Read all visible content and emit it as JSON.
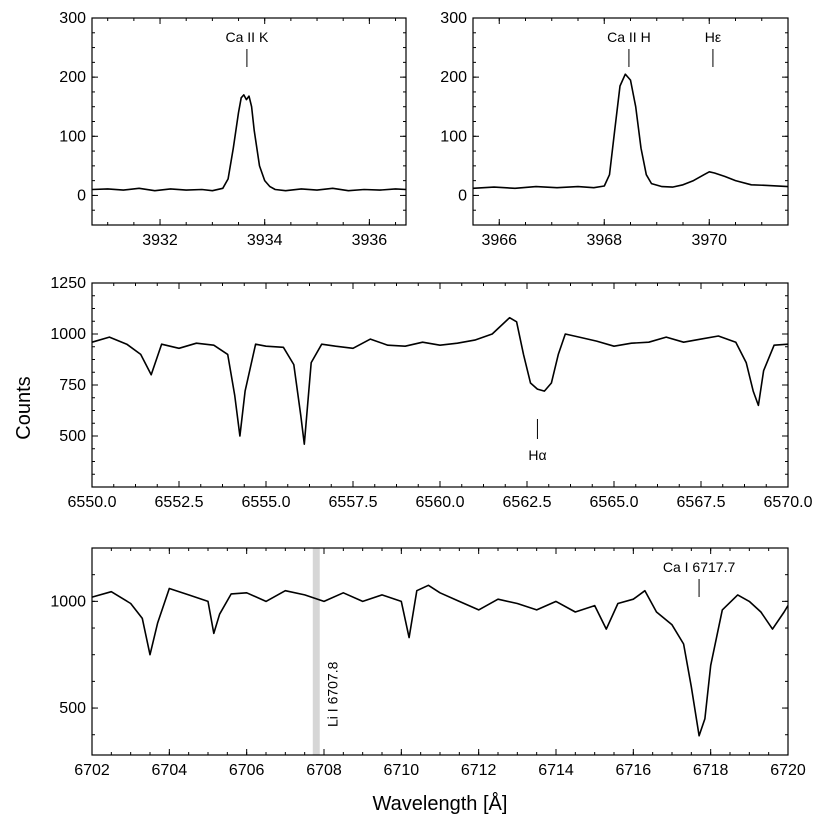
{
  "figure": {
    "ylabel": "Counts",
    "xlabel": "Wavelength [Å]"
  },
  "chart_data": [
    {
      "type": "line",
      "panel": "ca-ii-k",
      "xlim": [
        3930.7,
        3936.7
      ],
      "ylim": [
        -50,
        300
      ],
      "xticks": [
        3932,
        3934,
        3936
      ],
      "xtick_labels": [
        "3932",
        "3934",
        "3936"
      ],
      "yticks": [
        0,
        100,
        200,
        300
      ],
      "ytick_labels": [
        "0",
        "100",
        "200",
        "300"
      ],
      "annotations": [
        {
          "label": "Ca II K",
          "x": 3933.66
        }
      ],
      "series": [
        {
          "line_color": "#000000",
          "x": [
            3930.7,
            3931.0,
            3931.3,
            3931.6,
            3931.9,
            3932.2,
            3932.5,
            3932.8,
            3933.0,
            3933.2,
            3933.3,
            3933.4,
            3933.5,
            3933.55,
            3933.6,
            3933.65,
            3933.7,
            3933.75,
            3933.8,
            3933.9,
            3934.0,
            3934.1,
            3934.2,
            3934.4,
            3934.7,
            3935.0,
            3935.3,
            3935.6,
            3935.9,
            3936.2,
            3936.5,
            3936.7
          ],
          "y": [
            10,
            11,
            9,
            12,
            8,
            11,
            9,
            10,
            8,
            12,
            28,
            80,
            140,
            165,
            170,
            162,
            168,
            150,
            110,
            50,
            25,
            15,
            10,
            8,
            11,
            9,
            12,
            8,
            10,
            9,
            11,
            10
          ]
        }
      ]
    },
    {
      "type": "line",
      "panel": "ca-ii-h",
      "xlim": [
        3965.5,
        3971.5
      ],
      "ylim": [
        -50,
        300
      ],
      "xticks": [
        3966,
        3968,
        3970
      ],
      "xtick_labels": [
        "3966",
        "3968",
        "3970"
      ],
      "yticks": [
        0,
        100,
        200,
        300
      ],
      "ytick_labels": [
        "0",
        "100",
        "200",
        "300"
      ],
      "annotations": [
        {
          "label": "Ca II H",
          "x": 3968.47
        },
        {
          "label": "Hε",
          "x": 3970.07
        }
      ],
      "series": [
        {
          "line_color": "#000000",
          "x": [
            3965.5,
            3965.9,
            3966.3,
            3966.7,
            3967.1,
            3967.5,
            3967.8,
            3968.0,
            3968.1,
            3968.2,
            3968.3,
            3968.4,
            3968.45,
            3968.5,
            3968.6,
            3968.7,
            3968.8,
            3968.9,
            3969.1,
            3969.3,
            3969.5,
            3969.7,
            3969.9,
            3970.0,
            3970.1,
            3970.3,
            3970.5,
            3970.8,
            3971.1,
            3971.5
          ],
          "y": [
            12,
            14,
            12,
            15,
            13,
            15,
            13,
            16,
            35,
            110,
            185,
            205,
            200,
            195,
            150,
            80,
            35,
            20,
            15,
            14,
            18,
            25,
            35,
            40,
            38,
            32,
            25,
            18,
            17,
            15
          ]
        }
      ]
    },
    {
      "type": "line",
      "panel": "h-alpha",
      "xlim": [
        6550.0,
        6570.0
      ],
      "ylim": [
        250,
        1250
      ],
      "xticks": [
        6550.0,
        6552.5,
        6555.0,
        6557.5,
        6560.0,
        6562.5,
        6565.0,
        6567.5,
        6570.0
      ],
      "xtick_labels": [
        "6550.0",
        "6552.5",
        "6555.0",
        "6557.5",
        "6560.0",
        "6562.5",
        "6565.0",
        "6567.5",
        "6570.0"
      ],
      "yticks": [
        500,
        750,
        1000,
        1250
      ],
      "ytick_labels": [
        "500",
        "750",
        "1000",
        "1250"
      ],
      "annotations": [
        {
          "label": "Hα",
          "x": 6562.8
        }
      ],
      "series": [
        {
          "line_color": "#000000",
          "x": [
            6550.0,
            6550.5,
            6551.0,
            6551.4,
            6551.7,
            6552.0,
            6552.5,
            6553.0,
            6553.5,
            6553.9,
            6554.1,
            6554.25,
            6554.4,
            6554.7,
            6555.0,
            6555.5,
            6555.8,
            6556.0,
            6556.1,
            6556.3,
            6556.6,
            6557.0,
            6557.5,
            6558.0,
            6558.5,
            6559.0,
            6559.5,
            6560.0,
            6560.5,
            6561.0,
            6561.5,
            6562.0,
            6562.2,
            6562.4,
            6562.6,
            6562.8,
            6563.0,
            6563.2,
            6563.4,
            6563.6,
            6564.0,
            6564.5,
            6565.0,
            6565.5,
            6566.0,
            6566.5,
            6567.0,
            6567.5,
            6568.0,
            6568.5,
            6568.8,
            6569.0,
            6569.15,
            6569.3,
            6569.6,
            6570.0
          ],
          "y": [
            960,
            985,
            950,
            900,
            800,
            950,
            930,
            955,
            945,
            900,
            700,
            500,
            720,
            950,
            940,
            935,
            850,
            600,
            460,
            860,
            950,
            940,
            930,
            975,
            945,
            940,
            960,
            945,
            955,
            970,
            1000,
            1080,
            1060,
            900,
            760,
            730,
            720,
            760,
            900,
            1000,
            985,
            965,
            940,
            955,
            960,
            985,
            960,
            975,
            990,
            960,
            860,
            720,
            650,
            820,
            945,
            950
          ]
        }
      ]
    },
    {
      "type": "line",
      "panel": "li-i",
      "xlim": [
        6702.0,
        6720.0
      ],
      "ylim": [
        280,
        1250
      ],
      "xticks": [
        6702,
        6704,
        6706,
        6708,
        6710,
        6712,
        6714,
        6716,
        6718,
        6720
      ],
      "xtick_labels": [
        "6702",
        "6704",
        "6706",
        "6708",
        "6710",
        "6712",
        "6714",
        "6716",
        "6718",
        "6720"
      ],
      "yticks": [
        500,
        1000
      ],
      "ytick_labels": [
        "500",
        "1000"
      ],
      "annotations": [
        {
          "label": "Ca I 6717.7",
          "x": 6717.7
        }
      ],
      "band": {
        "label": "Li I 6707.8",
        "x": 6707.8
      },
      "series": [
        {
          "line_color": "#000000",
          "x": [
            6702.0,
            6702.5,
            6703.0,
            6703.3,
            6703.5,
            6703.7,
            6704.0,
            6704.5,
            6705.0,
            6705.15,
            6705.3,
            6705.6,
            6706.0,
            6706.5,
            6707.0,
            6707.5,
            6708.0,
            6708.5,
            6709.0,
            6709.5,
            6710.0,
            6710.2,
            6710.4,
            6710.7,
            6711.0,
            6711.5,
            6712.0,
            6712.5,
            6713.0,
            6713.5,
            6714.0,
            6714.5,
            6715.0,
            6715.3,
            6715.6,
            6716.0,
            6716.3,
            6716.6,
            6717.0,
            6717.3,
            6717.5,
            6717.7,
            6717.85,
            6718.0,
            6718.3,
            6718.7,
            6719.0,
            6719.3,
            6719.6,
            6719.9,
            6720.0
          ],
          "y": [
            1020,
            1045,
            990,
            920,
            750,
            900,
            1060,
            1030,
            1000,
            850,
            940,
            1035,
            1040,
            1000,
            1050,
            1030,
            1000,
            1040,
            1000,
            1030,
            1000,
            830,
            1050,
            1075,
            1040,
            1000,
            960,
            1010,
            990,
            960,
            1000,
            950,
            980,
            870,
            990,
            1010,
            1050,
            950,
            890,
            800,
            600,
            370,
            450,
            700,
            960,
            1030,
            1000,
            950,
            870,
            950,
            980
          ]
        }
      ]
    }
  ]
}
